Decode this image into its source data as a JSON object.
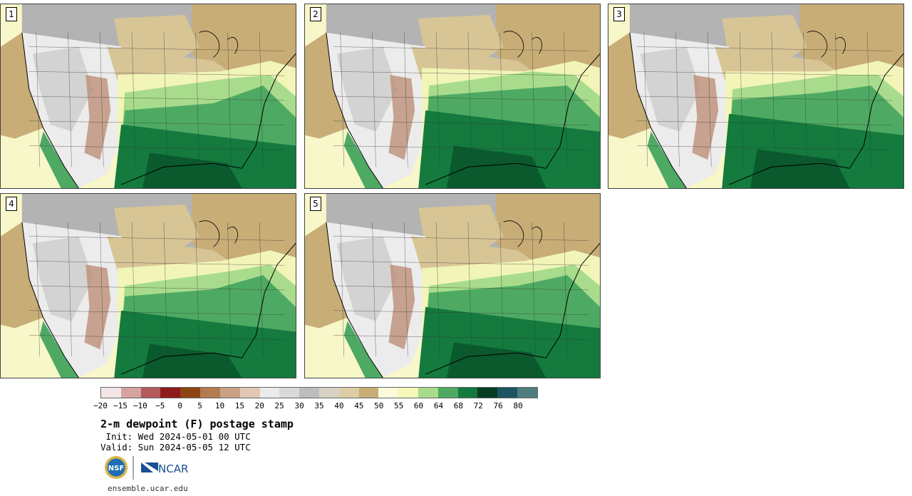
{
  "panels": [
    {
      "label": "1"
    },
    {
      "label": "2"
    },
    {
      "label": "3"
    },
    {
      "label": "4"
    },
    {
      "label": "5"
    }
  ],
  "colorbar": {
    "colors": [
      "#f4e6e6",
      "#d6a2a2",
      "#b45a5a",
      "#8e1b1b",
      "#8c4512",
      "#b47a52",
      "#c9a084",
      "#e2c7b4",
      "#ebebeb",
      "#d9d9d9",
      "#bdbdbd",
      "#d6d3c6",
      "#dccda4",
      "#c8ad77",
      "#fbfbdb",
      "#f4f7b8",
      "#a8dc8c",
      "#4eaa62",
      "#127a3e",
      "#053d23",
      "#1e5364",
      "#4f7d80"
    ],
    "ticks": [
      "−20",
      "−15",
      "−10",
      "−5",
      "0",
      "5",
      "10",
      "15",
      "20",
      "25",
      "30",
      "35",
      "40",
      "45",
      "50",
      "55",
      "60",
      "64",
      "68",
      "72",
      "76",
      "80"
    ]
  },
  "title": "2-m dewpoint (F) postage stamp",
  "init": " Init: Wed 2024-05-01 00 UTC",
  "valid": "Valid: Sun 2024-05-05 12 UTC",
  "logos": {
    "nsf": "NSF",
    "ncar": "NCAR"
  },
  "url": "ensemble.ucar.edu"
}
